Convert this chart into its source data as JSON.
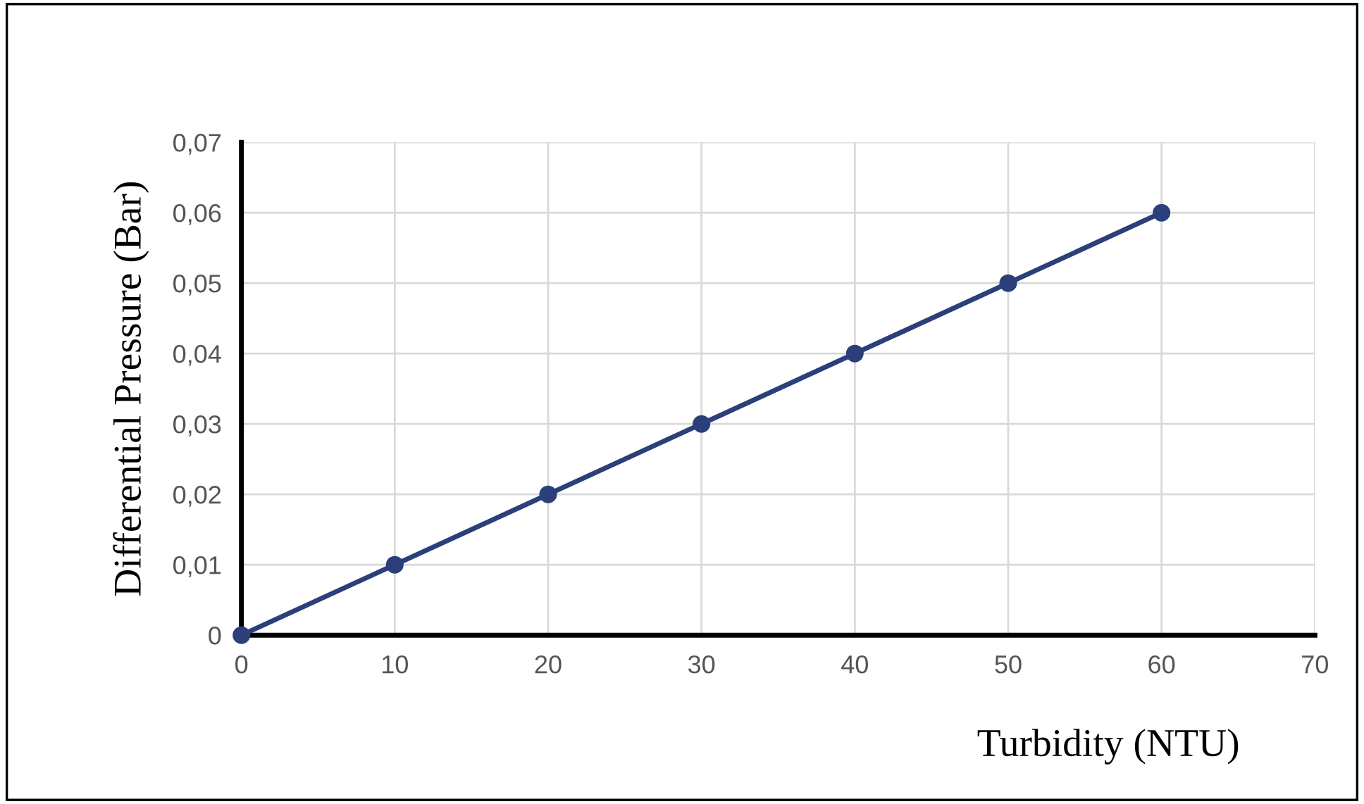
{
  "chart_data": {
    "type": "line",
    "xlabel": "Turbidity (NTU)",
    "ylabel": "Differential Pressure (Bar)",
    "x": [
      0,
      10,
      20,
      30,
      40,
      50,
      60
    ],
    "series": [
      {
        "color": "#2b3f7a",
        "values": [
          0,
          0.01,
          0.02,
          0.03,
          0.04,
          0.05,
          0.06
        ]
      }
    ],
    "xlim": [
      0,
      70
    ],
    "xticks": [
      0,
      10,
      20,
      30,
      40,
      50,
      60,
      70
    ],
    "ylim": [
      0,
      0.07
    ],
    "yticks": [
      0,
      {
        "value": 0.01,
        "label": "0,01"
      },
      {
        "value": 0.02,
        "label": "0,02"
      },
      {
        "value": 0.03,
        "label": "0,03"
      },
      {
        "value": 0.04,
        "label": "0,04"
      },
      {
        "value": 0.05,
        "label": "0,05"
      },
      {
        "value": 0.06,
        "label": "0,06"
      },
      {
        "value": 0.07,
        "label": "0,07"
      }
    ],
    "grid": true,
    "marker": "circle",
    "line_style": "solid",
    "legend": false
  }
}
